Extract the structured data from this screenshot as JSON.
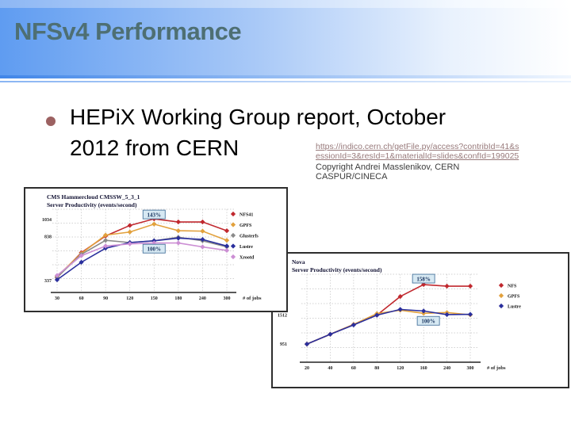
{
  "slide": {
    "title": "NFSv4 Performance",
    "bullet": {
      "line1": "HEPiX Working Group report, October",
      "line2": "2012 from CERN"
    },
    "link": {
      "line1": "https://indico.cern.ch/getFile.py/access?contribId=41&s",
      "line2": "essionId=3&resId=1&materialId=slides&confId=199025"
    },
    "credit": {
      "line1": "Copyright Andrei Masslenikov, CERN",
      "line2": "CASPUR/CINECA"
    }
  },
  "colors": {
    "title_text": "#4e6f73",
    "bullet_marker": "#9c6161",
    "link_text": "#97797a",
    "header_blue": "#5f9cf1",
    "annotation_fill": "#d7e9f3"
  },
  "chart_data": [
    {
      "type": "line",
      "title_line1": "CMS Hammercloud CMSSW_5_3_1",
      "title_line2": "Server Productivity (events/second)",
      "xlabel": "# of jobs",
      "categories": [
        30,
        60,
        90,
        120,
        150,
        180,
        240,
        300
      ],
      "ylim": [
        200,
        1150
      ],
      "grid": true,
      "legend_position": "right",
      "yticks": [
        {
          "value": 1034,
          "label": "1034"
        },
        {
          "value": 838,
          "label": "838"
        },
        {
          "value": 337,
          "label": "337"
        }
      ],
      "series": [
        {
          "name": "NFS41",
          "color": "#c0282e",
          "values": [
            370,
            655,
            845,
            965,
            1040,
            1005,
            1005,
            905
          ]
        },
        {
          "name": "GPFS",
          "color": "#e2a13c",
          "values": [
            385,
            645,
            855,
            890,
            980,
            905,
            900,
            795
          ]
        },
        {
          "name": "Glusterfs",
          "color": "#8a8a8a",
          "values": [
            375,
            635,
            795,
            770,
            790,
            830,
            790,
            720
          ]
        },
        {
          "name": "Lustre",
          "color": "#2a2f9d",
          "values": [
            345,
            545,
            705,
            770,
            790,
            820,
            805,
            730
          ]
        },
        {
          "name": "Xrootd",
          "color": "#cc8fd4",
          "values": [
            395,
            620,
            730,
            755,
            765,
            765,
            720,
            680
          ]
        }
      ],
      "annotations": [
        {
          "label": "143%",
          "x_index": 4,
          "value": 1090
        },
        {
          "label": "100%",
          "x_index": 4,
          "value": 700
        }
      ]
    },
    {
      "type": "line",
      "title_line1": "Nova",
      "title_line2": "Server Productivity (events/second)",
      "xlabel": "# of jobs",
      "categories": [
        20,
        40,
        60,
        80,
        120,
        160,
        240,
        300
      ],
      "ylim": [
        600,
        2300
      ],
      "grid": true,
      "legend_position": "right",
      "yticks": [
        {
          "value": 1512,
          "label": "1512"
        },
        {
          "value": 951,
          "label": "951"
        }
      ],
      "series": [
        {
          "name": "NFS",
          "color": "#c0282e",
          "values": [
            950,
            1140,
            1330,
            1510,
            1870,
            2100,
            2070,
            2070
          ]
        },
        {
          "name": "GPFS",
          "color": "#e2a13c",
          "values": [
            950,
            1140,
            1330,
            1540,
            1605,
            1545,
            1560,
            1515
          ]
        },
        {
          "name": "Lustre",
          "color": "#2a2f9d",
          "values": [
            950,
            1140,
            1320,
            1510,
            1620,
            1590,
            1520,
            1525
          ]
        }
      ],
      "annotations": [
        {
          "label": "158%",
          "x_index": 5,
          "value": 2215
        },
        {
          "label": "100%",
          "x_index": 5,
          "value": 1400,
          "dx": 6
        }
      ]
    }
  ]
}
